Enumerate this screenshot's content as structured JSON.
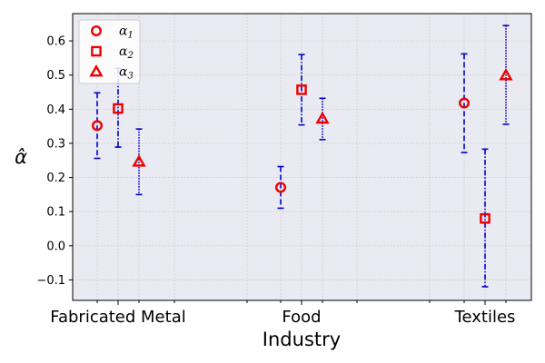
{
  "chart_data": {
    "type": "scatter",
    "xlabel": "Industry",
    "ylabel": "α̂",
    "categories": [
      "Fabricated Metal",
      "Food",
      "Textiles"
    ],
    "ylim": [
      -0.16,
      0.68
    ],
    "yticks": [
      "0.6",
      "0.5",
      "0.4",
      "0.3",
      "0.2",
      "0.1",
      "0.0",
      "−0.1"
    ],
    "grid": true,
    "legend_position": "top-left",
    "series": [
      {
        "name": "α1",
        "marker": "circle",
        "linestyle": "dashed",
        "points": [
          {
            "category": "Fabricated Metal",
            "value": 0.352,
            "lower": 0.256,
            "upper": 0.448
          },
          {
            "category": "Food",
            "value": 0.171,
            "lower": 0.11,
            "upper": 0.232
          },
          {
            "category": "Textiles",
            "value": 0.418,
            "lower": 0.273,
            "upper": 0.562
          }
        ]
      },
      {
        "name": "α2",
        "marker": "square",
        "linestyle": "dashdot",
        "points": [
          {
            "category": "Fabricated Metal",
            "value": 0.402,
            "lower": 0.289,
            "upper": 0.52
          },
          {
            "category": "Food",
            "value": 0.457,
            "lower": 0.354,
            "upper": 0.56
          },
          {
            "category": "Textiles",
            "value": 0.08,
            "lower": -0.12,
            "upper": 0.283
          }
        ]
      },
      {
        "name": "α3",
        "marker": "triangle",
        "linestyle": "dotted",
        "points": [
          {
            "category": "Fabricated Metal",
            "value": 0.246,
            "lower": 0.15,
            "upper": 0.342
          },
          {
            "category": "Food",
            "value": 0.372,
            "lower": 0.311,
            "upper": 0.432
          },
          {
            "category": "Textiles",
            "value": 0.499,
            "lower": 0.356,
            "upper": 0.645
          }
        ]
      }
    ],
    "colors": {
      "marker": "#ee0000",
      "errorbar": "#0000cc",
      "plot_bg": "#eaeaf2",
      "grid": "#c8c8c8"
    }
  }
}
